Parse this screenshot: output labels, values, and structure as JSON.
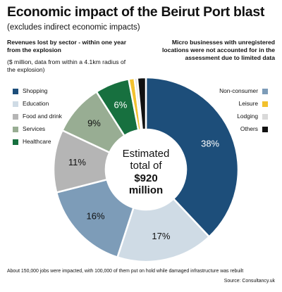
{
  "chart_data": {
    "type": "donut",
    "title": "Economic impact of the Beirut Port blast",
    "subtitle": "(excludes indirect economic impacts)",
    "note_left": "Revenues lost by sector - within one year from the explosion",
    "note_left_units": "($ million, data from within a 4.1km radius of the explosion)",
    "note_right": "Micro businesses with unregistered locations were not accounted for in the assessment due to limited data",
    "center_label": {
      "text": "Estimated total of",
      "highlight": "$920 million"
    },
    "categories": [
      "Shopping",
      "Education",
      "Non-consumer",
      "Food and drink",
      "Services",
      "Healthcare",
      "Leisure",
      "Lodging",
      "Others"
    ],
    "values": [
      38,
      17,
      16,
      11,
      9,
      6,
      1,
      0.5,
      1.5
    ],
    "value_labels": [
      "38%",
      "17%",
      "16%",
      "11%",
      "9%",
      "6%",
      null,
      null,
      null
    ],
    "colors": [
      "#1d4e7a",
      "#cfdbe5",
      "#7d9cb8",
      "#b5b5b5",
      "#98ad93",
      "#17703f",
      "#f2c12e",
      "#d9d9d9",
      "#111111"
    ],
    "footnote": "About 150,000 jobs were impacted, with 100,000 of them put on hold while damaged infrastructure was rebuilt",
    "source": "Source: Consultancy.uk"
  }
}
